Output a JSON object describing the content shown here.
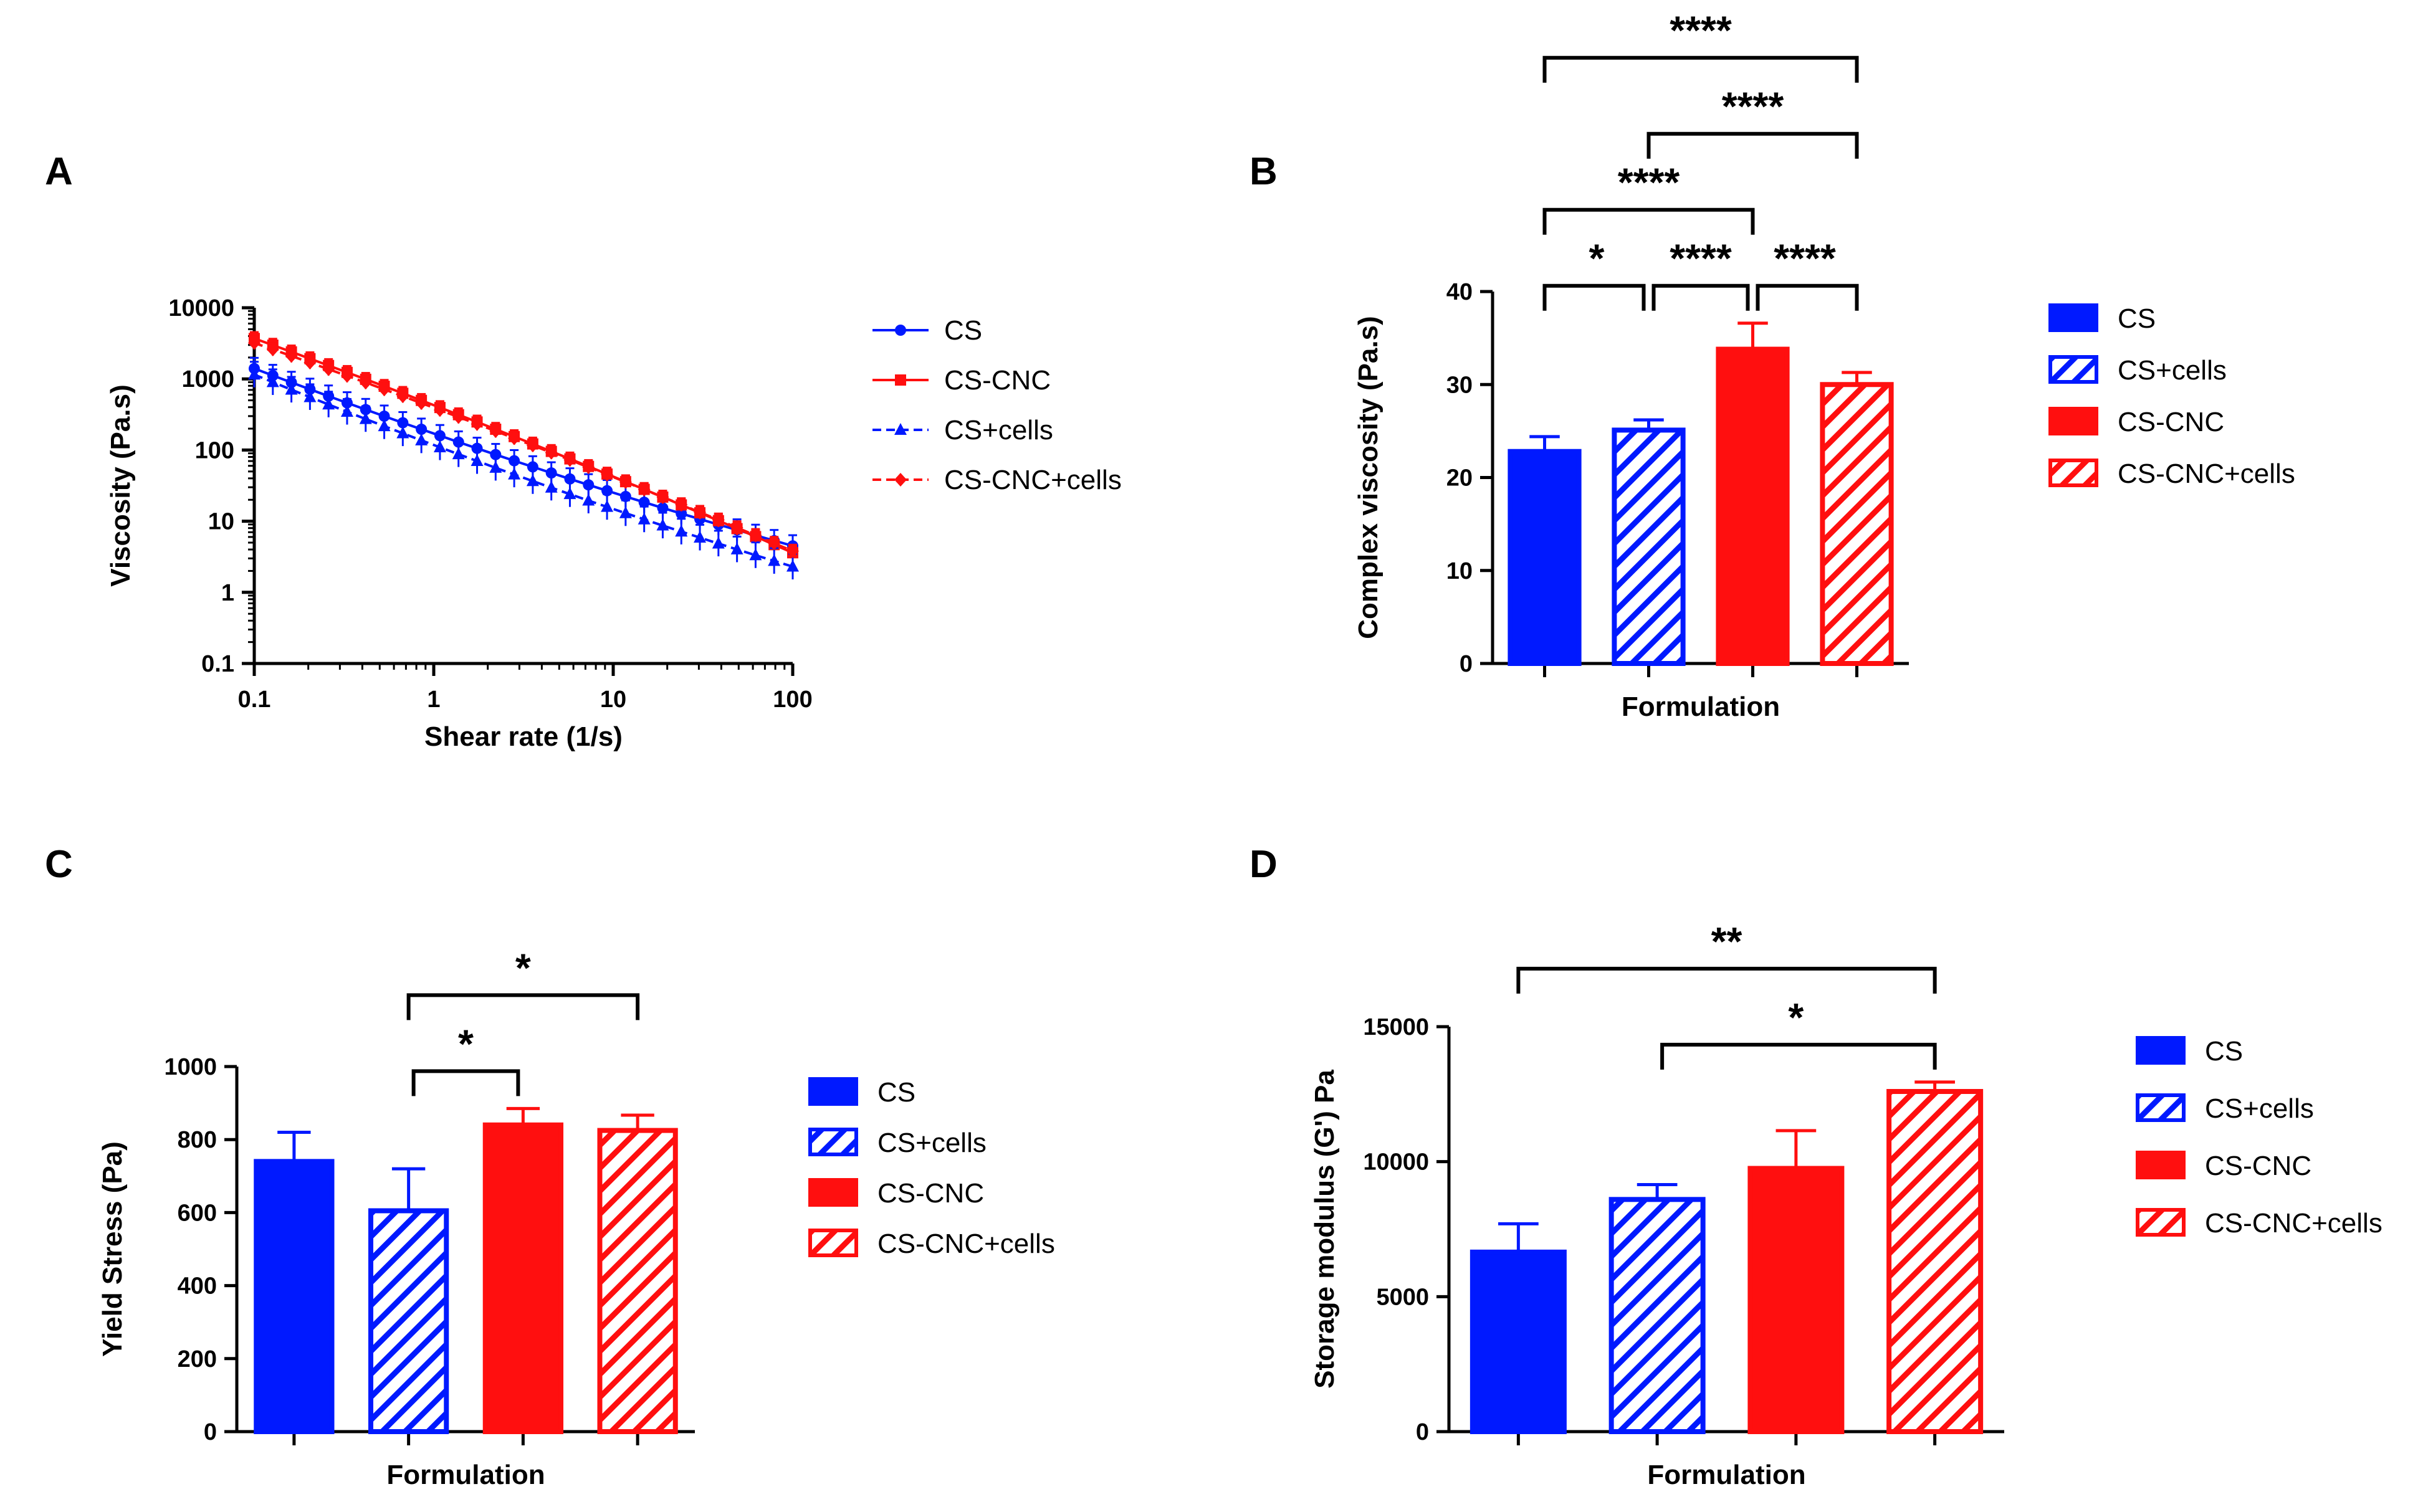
{
  "colors": {
    "blue": "#0019FF",
    "red": "#FF0F0F"
  },
  "chart_data": [
    {
      "panel": "A",
      "type": "line",
      "xlabel": "Shear rate (1/s)",
      "ylabel": "Viscosity (Pa.s)",
      "xscale": "log",
      "yscale": "log",
      "xlim": [
        0.1,
        100
      ],
      "ylim": [
        0.1,
        10000
      ],
      "xticks": [
        {
          "v": 0.1,
          "label": "0.1"
        },
        {
          "v": 1,
          "label": "1"
        },
        {
          "v": 10,
          "label": "10"
        },
        {
          "v": 100,
          "label": "100"
        }
      ],
      "yticks": [
        {
          "v": 0.1,
          "label": "0.1"
        },
        {
          "v": 1,
          "label": "1"
        },
        {
          "v": 10,
          "label": "10"
        },
        {
          "v": 100,
          "label": "100"
        },
        {
          "v": 1000,
          "label": "1000"
        },
        {
          "v": 10000,
          "label": "10000"
        }
      ],
      "legend_position": "right",
      "series": [
        {
          "name": "CS",
          "color": "#0019FF",
          "marker": "circle",
          "dashed": false,
          "start": 1400,
          "end": 4.5,
          "shape": 0.15,
          "err": 0.25
        },
        {
          "name": "CS-CNC",
          "color": "#FF0F0F",
          "marker": "square",
          "dashed": false,
          "start": 3700,
          "end": 3.6,
          "shape": -0.1,
          "err": 0.15
        },
        {
          "name": "CS+cells",
          "color": "#0019FF",
          "marker": "triangle",
          "dashed": true,
          "start": 1150,
          "end": 2.3,
          "shape": 0.15,
          "err": 0.3
        },
        {
          "name": "CS-CNC+cells",
          "color": "#FF0F0F",
          "marker": "diamond",
          "dashed": true,
          "start": 3200,
          "end": 3.8,
          "shape": -0.1,
          "err": 0.15
        }
      ]
    },
    {
      "panel": "B",
      "type": "bar",
      "xlabel": "Formulation",
      "ylabel": "Complex viscosity (Pa.s)",
      "ylim": [
        0,
        40
      ],
      "yticks": [
        0,
        10,
        20,
        30,
        40
      ],
      "categories": [
        "CS",
        "CS+cells",
        "CS-CNC",
        "CS-CNC+cells"
      ],
      "values": [
        22.8,
        25.1,
        33.8,
        30.0
      ],
      "errors": [
        1.6,
        1.1,
        2.8,
        1.3
      ],
      "fill": [
        "solid",
        "hatched",
        "solid",
        "hatched"
      ],
      "bar_colors": [
        "#0019FF",
        "#0019FF",
        "#FF0F0F",
        "#FF0F0F"
      ],
      "legend_position": "right",
      "significance": [
        {
          "from": 0,
          "to": 1,
          "label": "*",
          "level": 0
        },
        {
          "from": 1,
          "to": 2,
          "label": "****",
          "level": 0
        },
        {
          "from": 2,
          "to": 3,
          "label": "****",
          "level": 0
        },
        {
          "from": 0,
          "to": 2,
          "label": "****",
          "level": 1
        },
        {
          "from": 1,
          "to": 3,
          "label": "****",
          "level": 2
        },
        {
          "from": 0,
          "to": 3,
          "label": "****",
          "level": 3
        }
      ]
    },
    {
      "panel": "C",
      "type": "bar",
      "xlabel": "Formulation",
      "ylabel": "Yield Stress (Pa)",
      "ylim": [
        0,
        1000
      ],
      "yticks": [
        0,
        200,
        400,
        600,
        800,
        1000
      ],
      "categories": [
        "CS",
        "CS+cells",
        "CS-CNC",
        "CS-CNC+cells"
      ],
      "values": [
        740,
        605,
        840,
        825
      ],
      "errors": [
        80,
        115,
        45,
        42
      ],
      "fill": [
        "solid",
        "hatched",
        "solid",
        "hatched"
      ],
      "bar_colors": [
        "#0019FF",
        "#0019FF",
        "#FF0F0F",
        "#FF0F0F"
      ],
      "legend_position": "right",
      "significance": [
        {
          "from": 1,
          "to": 2,
          "label": "*",
          "level": 0
        },
        {
          "from": 1,
          "to": 3,
          "label": "*",
          "level": 1
        }
      ]
    },
    {
      "panel": "D",
      "type": "bar",
      "xlabel": "Formulation",
      "ylabel": "Storage modulus (G') Pa",
      "ylim": [
        0,
        15000
      ],
      "yticks": [
        0,
        5000,
        10000,
        15000
      ],
      "categories": [
        "CS",
        "CS+cells",
        "CS-CNC",
        "CS-CNC+cells"
      ],
      "values": [
        6650,
        8600,
        9750,
        12600
      ],
      "errors": [
        1050,
        550,
        1400,
        350
      ],
      "fill": [
        "solid",
        "hatched",
        "solid",
        "hatched"
      ],
      "bar_colors": [
        "#0019FF",
        "#0019FF",
        "#FF0F0F",
        "#FF0F0F"
      ],
      "legend_position": "right",
      "significance": [
        {
          "from": 1,
          "to": 3,
          "label": "*",
          "level": 0
        },
        {
          "from": 0,
          "to": 3,
          "label": "**",
          "level": 1
        }
      ]
    }
  ]
}
